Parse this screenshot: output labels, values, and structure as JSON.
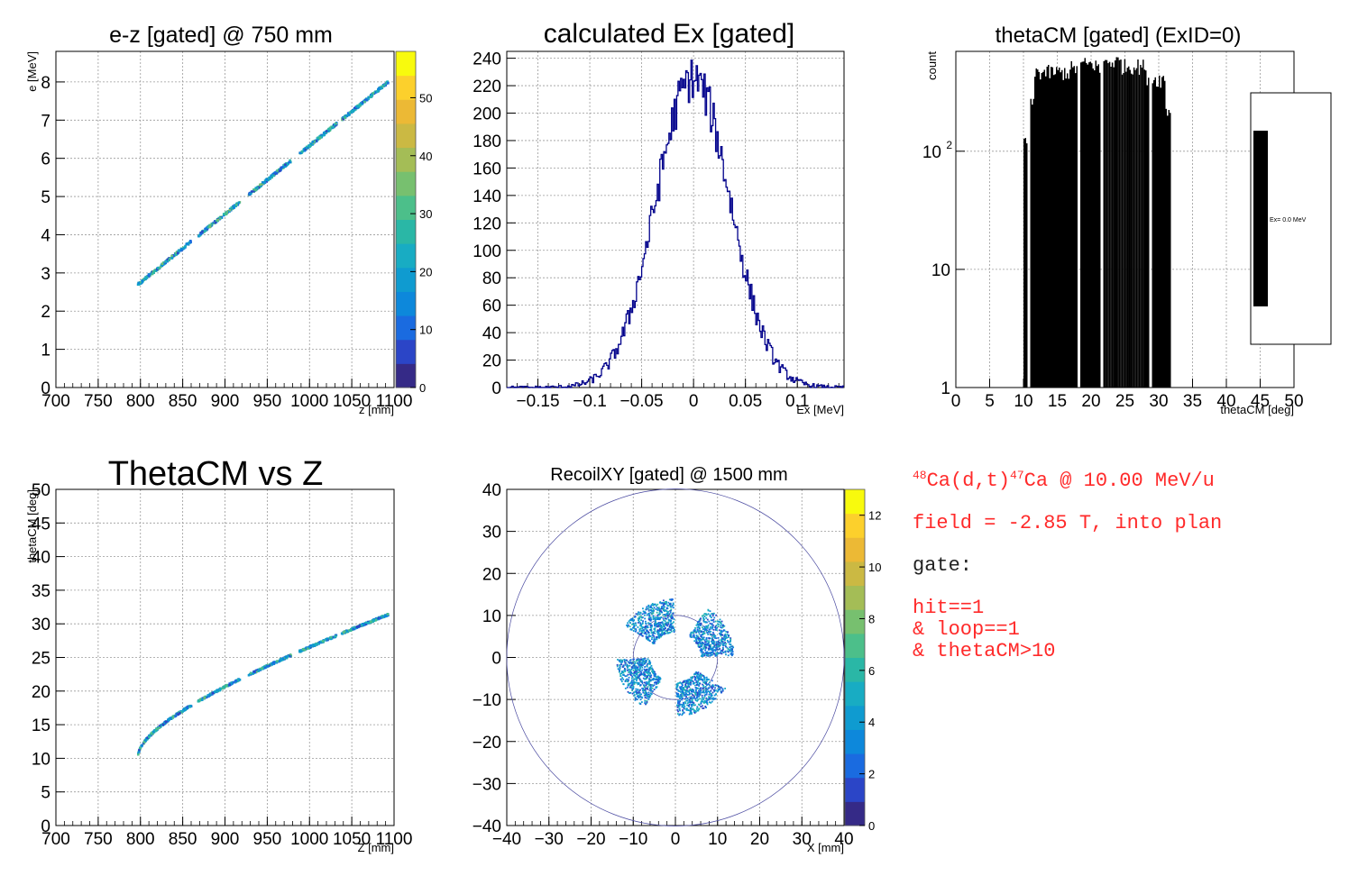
{
  "colors": {
    "hist_line": "#00008b",
    "fill_black": "#000000",
    "annotation_red": "#ff2a2a",
    "circle": "#4a4aa0",
    "grid": "#9a9a9a"
  },
  "palette": [
    "#352a87",
    "#2b45c7",
    "#1a6be0",
    "#0d88db",
    "#0f9bd0",
    "#18acc3",
    "#2ab7a6",
    "#4cbf8a",
    "#77c06f",
    "#a4bd56",
    "#cbb943",
    "#ecb935",
    "#fcd02c",
    "#f8fa0d"
  ],
  "chart_data": [
    {
      "id": "ez",
      "type": "heatmap",
      "title": "e-z [gated] @   750 mm",
      "xlabel": "z [mm]",
      "ylabel": "e [MeV]",
      "xlim": [
        700,
        1100
      ],
      "ylim": [
        0,
        8.8
      ],
      "xticks": [
        700,
        750,
        800,
        850,
        900,
        950,
        1000,
        1050,
        1100
      ],
      "yticks": [
        0,
        1,
        2,
        3,
        4,
        5,
        6,
        7,
        8
      ],
      "zlim": [
        0,
        58
      ],
      "zticks": [
        0,
        10,
        20,
        30,
        40,
        50
      ],
      "band": {
        "x": [
          797,
          1093
        ],
        "y": [
          2.7,
          8.0
        ],
        "gaps": [
          [
            860,
            868
          ],
          [
            918,
            928
          ],
          [
            978,
            988
          ],
          [
            1032,
            1038
          ]
        ]
      },
      "grid": true
    },
    {
      "id": "ex",
      "type": "line",
      "title": "calculated Ex [gated]",
      "xlabel": "Ex [MeV]",
      "ylabel": "",
      "xlim": [
        -0.18,
        0.145
      ],
      "ylim": [
        0,
        245
      ],
      "xticks": [
        -0.15,
        -0.1,
        -0.05,
        0,
        0.05,
        0.1
      ],
      "xticklabels": [
        "−0.15",
        "−0.1",
        "−0.05",
        "0",
        "0.05",
        "0.1"
      ],
      "yticks": [
        0,
        20,
        40,
        60,
        80,
        100,
        120,
        140,
        160,
        180,
        200,
        220,
        240
      ],
      "peak": {
        "mean": -0.0005,
        "sigma": 0.036,
        "height": 225
      },
      "grid": true
    },
    {
      "id": "theta",
      "type": "bar",
      "title": "thetaCM [gated] (ExID=0)",
      "xlabel": "thetaCM [deg]",
      "ylabel": "count",
      "log_y": true,
      "xlim": [
        0,
        50
      ],
      "ylim": [
        1,
        700
      ],
      "xticks": [
        0,
        5,
        10,
        15,
        20,
        25,
        30,
        35,
        40,
        45,
        50
      ],
      "yticks": [
        1,
        10,
        100
      ],
      "yticklabels": [
        "1",
        "10",
        "10^2"
      ],
      "edges": [
        [
          10.0,
          10.6,
          130
        ],
        [
          11.0,
          11.6,
          250
        ],
        [
          11.6,
          17.0,
          480
        ],
        [
          17.0,
          18.0,
          520
        ],
        [
          18.4,
          21.0,
          560
        ],
        [
          21.0,
          21.4,
          500
        ],
        [
          21.8,
          24.5,
          590
        ],
        [
          24.5,
          28.0,
          540
        ],
        [
          28.0,
          28.6,
          440
        ],
        [
          29.0,
          31.0,
          420
        ],
        [
          31.0,
          31.8,
          230
        ]
      ],
      "legend_position": "right",
      "legend_entry": "Ex=  0.0 MeV",
      "grid": true
    },
    {
      "id": "thz",
      "type": "heatmap",
      "title": "ThetaCM vs Z",
      "xlabel": "Z [mm]",
      "ylabel": "thetaCM [deg]",
      "xlim": [
        700,
        1100
      ],
      "ylim": [
        0,
        50
      ],
      "xticks": [
        700,
        750,
        800,
        850,
        900,
        950,
        1000,
        1050,
        1100
      ],
      "yticks": [
        0,
        5,
        10,
        15,
        20,
        25,
        30,
        35,
        40,
        45,
        50
      ],
      "band": {
        "x": [
          797,
          1093
        ],
        "y": [
          10.2,
          31.4
        ],
        "gaps": [
          [
            860,
            868
          ],
          [
            918,
            928
          ],
          [
            978,
            988
          ],
          [
            1032,
            1038
          ]
        ]
      },
      "grid": true
    },
    {
      "id": "xy",
      "type": "heatmap",
      "title": "RecoilXY [gated] @ 1500 mm",
      "xlabel": "X [mm]",
      "ylabel": "",
      "xlim": [
        -40,
        40
      ],
      "ylim": [
        -40,
        40
      ],
      "xticks": [
        -40,
        -30,
        -20,
        -10,
        0,
        10,
        20,
        30,
        40
      ],
      "yticks": [
        -40,
        -30,
        -20,
        -10,
        0,
        10,
        20,
        30,
        40
      ],
      "xticklabels": [
        "−40",
        "−30",
        "−20",
        "−10",
        "0",
        "10",
        "20",
        "30",
        "40"
      ],
      "yticklabels": [
        "−40",
        "−30",
        "−20",
        "−10",
        "0",
        "10",
        "20",
        "30",
        "40"
      ],
      "zlim": [
        0,
        13
      ],
      "zticks": [
        0,
        2,
        4,
        6,
        8,
        10,
        12
      ],
      "circles": [
        40,
        10
      ],
      "sectors": {
        "r_in": 6,
        "r_out": 14,
        "centers_deg": [
          30,
          120,
          210,
          300
        ],
        "half_width_deg": 28
      },
      "grid": true
    }
  ],
  "annotations": {
    "reaction": {
      "a1": "48",
      "t1": "Ca(d,t)",
      "a2": "47",
      "t2": "Ca @ 10.00 MeV/u"
    },
    "field": "field = -2.85 T, into plan",
    "gate_label": "gate:",
    "gate_lines": "hit==1\n& loop==1\n& thetaCM>10"
  }
}
